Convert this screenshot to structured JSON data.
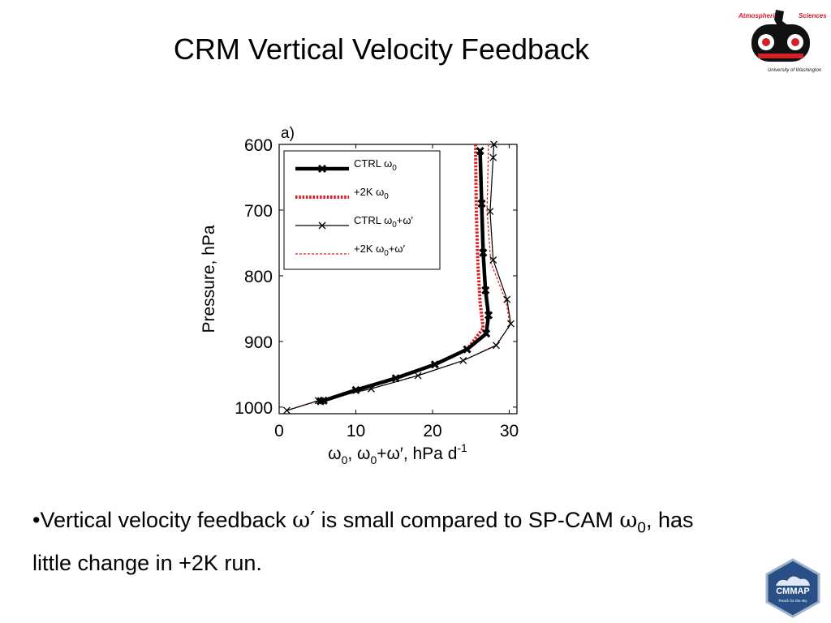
{
  "slide": {
    "title": "CRM Vertical Velocity Feedback",
    "bullet_parts": {
      "bullet": "•",
      "text1": "Vertical velocity feedback ",
      "omega_prime": "ω′",
      "text2": " is small compared to SP-CAM ",
      "omega0_base": "ω",
      "omega0_sub": "0",
      "text3": ", has little change in +2K run."
    }
  },
  "logos": {
    "top_right": {
      "top_left_text": "Atmospheric",
      "top_right_text": "Sciences",
      "bottom_text": "University of Washington",
      "accent": "#d42027"
    },
    "bottom_right": {
      "text": "CMMAP",
      "subtext": "Reach for the sky",
      "accent": "#2a4f86"
    }
  },
  "chart_data": {
    "type": "line",
    "panel_label": "a)",
    "ylabel": "Pressure, hPa",
    "xlabel_parts": {
      "w1": "ω",
      "s1": "0",
      "sep": ", ",
      "w2": "ω",
      "s2": "0",
      "mid": "+ω′, hPa d",
      "exp": "-1"
    },
    "xlim": [
      0,
      31
    ],
    "ylim": [
      1010,
      600
    ],
    "y_inverted": true,
    "x_ticks": [
      0,
      10,
      20,
      30
    ],
    "y_ticks": [
      600,
      700,
      800,
      900,
      1000
    ],
    "legend_position": "top-left",
    "series": [
      {
        "legend_name": "CTRL ω",
        "legend_sub": "0",
        "legend_tail": "",
        "color": "#000000",
        "style": "solid-thick",
        "marker": "x-bold",
        "points": [
          [
            26.2,
            610
          ],
          [
            26.4,
            690
          ],
          [
            26.6,
            765
          ],
          [
            26.9,
            822
          ],
          [
            27.3,
            860
          ],
          [
            27.0,
            888
          ],
          [
            24.5,
            912
          ],
          [
            20.3,
            935
          ],
          [
            15.2,
            956
          ],
          [
            10.0,
            974
          ],
          [
            5.8,
            990
          ],
          [
            5.4,
            991
          ]
        ]
      },
      {
        "legend_name": "+2K ω",
        "legend_sub": "0",
        "legend_tail": "",
        "color": "#e31a1c",
        "style": "dotted-thick",
        "marker": "none",
        "points": [
          [
            25.6,
            600
          ],
          [
            25.7,
            700
          ],
          [
            25.9,
            780
          ],
          [
            26.2,
            840
          ],
          [
            26.6,
            880
          ],
          [
            24.5,
            912
          ],
          [
            20.3,
            935
          ],
          [
            15.0,
            956
          ],
          [
            10.0,
            975
          ],
          [
            5.8,
            990
          ],
          [
            5.2,
            991
          ]
        ]
      },
      {
        "legend_name": "CTRL ω",
        "legend_sub": "0",
        "legend_tail": "+ω′",
        "color": "#000000",
        "style": "solid-thin",
        "marker": "x",
        "points": [
          [
            28.0,
            600
          ],
          [
            27.9,
            620
          ],
          [
            27.5,
            702
          ],
          [
            27.9,
            776
          ],
          [
            29.7,
            836
          ],
          [
            30.2,
            873
          ],
          [
            28.3,
            906
          ],
          [
            24.0,
            929
          ],
          [
            18.1,
            952
          ],
          [
            12.0,
            972
          ],
          [
            5.1,
            990
          ],
          [
            1.0,
            1005
          ]
        ]
      },
      {
        "legend_name": "+2K ω",
        "legend_sub": "0",
        "legend_tail": "+ω′",
        "color": "#e31a1c",
        "style": "dashed-thin",
        "marker": "none",
        "points": [
          [
            27.3,
            600
          ],
          [
            27.1,
            700
          ],
          [
            27.6,
            780
          ],
          [
            29.6,
            840
          ],
          [
            30.1,
            876
          ],
          [
            28.2,
            906
          ],
          [
            23.8,
            930
          ],
          [
            18.0,
            952
          ],
          [
            12.0,
            972
          ],
          [
            5.3,
            990
          ],
          [
            1.0,
            1005
          ]
        ]
      }
    ]
  }
}
